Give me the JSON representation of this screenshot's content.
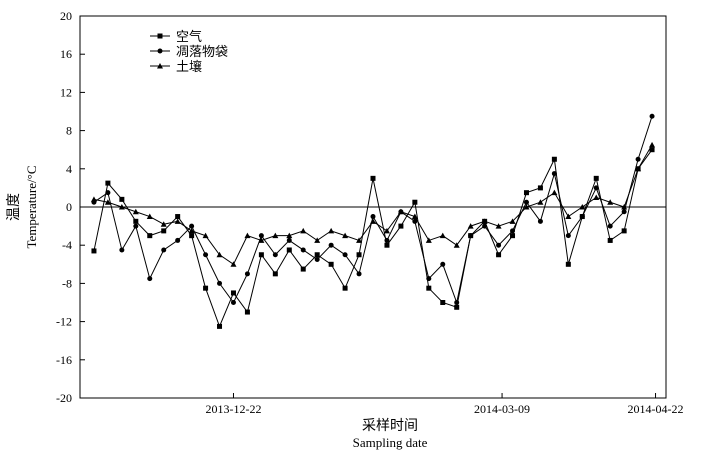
{
  "chart_data": {
    "type": "line",
    "title": "",
    "ylabel_cn": "温度",
    "ylabel_en": "Temperature/°C",
    "xlabel_cn": "采样时间",
    "xlabel_en": "Sampling date",
    "ylim": [
      -20,
      20
    ],
    "yticks": [
      -20,
      -16,
      -12,
      -8,
      -4,
      0,
      4,
      8,
      12,
      16,
      20
    ],
    "xlim": [
      "2013-11-08",
      "2014-04-25"
    ],
    "xticks": [
      "2013-12-22",
      "2014-03-09",
      "2014-04-22"
    ],
    "zero_line": true,
    "legend_position": "top-left",
    "x": [
      "2013-11-12",
      "2013-11-16",
      "2013-11-20",
      "2013-11-24",
      "2013-11-28",
      "2013-12-02",
      "2013-12-06",
      "2013-12-10",
      "2013-12-14",
      "2013-12-18",
      "2013-12-22",
      "2013-12-26",
      "2013-12-30",
      "2014-01-03",
      "2014-01-07",
      "2014-01-11",
      "2014-01-15",
      "2014-01-19",
      "2014-01-23",
      "2014-01-27",
      "2014-01-31",
      "2014-02-04",
      "2014-02-08",
      "2014-02-12",
      "2014-02-16",
      "2014-02-20",
      "2014-02-24",
      "2014-02-28",
      "2014-03-04",
      "2014-03-08",
      "2014-03-12",
      "2014-03-16",
      "2014-03-20",
      "2014-03-24",
      "2014-03-28",
      "2014-04-01",
      "2014-04-05",
      "2014-04-09",
      "2014-04-13",
      "2014-04-17",
      "2014-04-21"
    ],
    "series": [
      {
        "name": "空气",
        "marker": "square",
        "values": [
          -4.6,
          2.5,
          0.8,
          -1.5,
          -3.0,
          -2.5,
          -1.0,
          -3.0,
          -8.5,
          -12.5,
          -9.0,
          -11.0,
          -5.0,
          -7.0,
          -4.5,
          -6.5,
          -5.0,
          -6.0,
          -8.5,
          -5.0,
          3.0,
          -4.0,
          -2.0,
          0.5,
          -8.5,
          -10.0,
          -10.5,
          -3.0,
          -1.5,
          -5.0,
          -3.0,
          1.5,
          2.0,
          5.0,
          -6.0,
          -1.0,
          3.0,
          -3.5,
          -2.5,
          4.0,
          6.0
        ]
      },
      {
        "name": "凋落物袋",
        "marker": "circle",
        "values": [
          0.5,
          1.5,
          -4.5,
          -2.0,
          -7.5,
          -4.5,
          -3.5,
          -2.0,
          -5.0,
          -8.0,
          -10.0,
          -7.0,
          -3.0,
          -5.0,
          -3.5,
          -4.5,
          -5.5,
          -4.0,
          -5.0,
          -7.0,
          -1.0,
          -3.5,
          -0.5,
          -1.5,
          -7.5,
          -6.0,
          -10.0,
          -3.0,
          -2.0,
          -4.0,
          -2.5,
          0.5,
          -1.5,
          3.5,
          -3.0,
          -1.0,
          2.0,
          -2.0,
          -0.5,
          5.0,
          9.5
        ]
      },
      {
        "name": "土壤",
        "marker": "triangle",
        "values": [
          0.8,
          0.5,
          0.0,
          -0.5,
          -1.0,
          -1.8,
          -1.5,
          -2.5,
          -3.0,
          -5.0,
          -6.0,
          -3.0,
          -3.5,
          -3.0,
          -3.0,
          -2.5,
          -3.5,
          -2.5,
          -3.0,
          -3.5,
          -1.5,
          -2.5,
          -0.5,
          -1.0,
          -3.5,
          -3.0,
          -4.0,
          -2.0,
          -1.5,
          -2.0,
          -1.5,
          0.0,
          0.5,
          1.5,
          -1.0,
          0.0,
          1.0,
          0.5,
          0.0,
          4.0,
          6.5
        ]
      }
    ]
  }
}
